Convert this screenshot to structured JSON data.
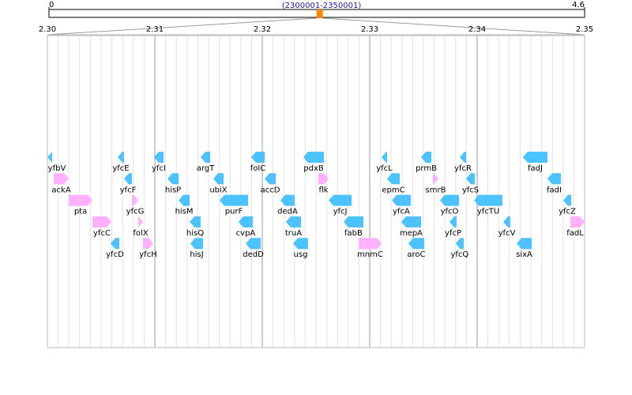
{
  "chart_data": {
    "type": "genome-map",
    "overview": {
      "xlim": [
        0,
        4.6
      ],
      "xticks": [
        0,
        4.6
      ],
      "label": "(2300001-2350001)",
      "region": [
        2.3,
        2.35
      ],
      "color": "#ff8800"
    },
    "xlim": [
      2.3,
      2.35
    ],
    "xticks": [
      {
        "value": 2.3,
        "label": "2.30"
      },
      2.31,
      2.32,
      2.33,
      2.34,
      2.35
    ],
    "minor_step": 0.001,
    "grid": true,
    "tracks": [
      [
        {
          "name": "yfbV",
          "start": 2.3,
          "end": 2.30044,
          "strand": "-",
          "color": "#4cc3ff"
        },
        {
          "name": "yfcE",
          "start": 2.30654,
          "end": 2.30713,
          "strand": "-",
          "color": "#4cc3ff"
        },
        {
          "name": "yfcI",
          "start": 2.30993,
          "end": 2.31081,
          "strand": "-",
          "color": "#4cc3ff"
        },
        {
          "name": "argT",
          "start": 2.31426,
          "end": 2.31515,
          "strand": "-",
          "color": "#4cc3ff"
        },
        {
          "name": "folC",
          "start": 2.31897,
          "end": 2.32022,
          "strand": "-",
          "color": "#4cc3ff"
        },
        {
          "name": "pdxB",
          "start": 2.32382,
          "end": 2.32574,
          "strand": "-",
          "color": "#4cc3ff"
        },
        {
          "name": "yfcL",
          "start": 2.3311,
          "end": 2.33162,
          "strand": "-",
          "color": "#4cc3ff"
        },
        {
          "name": "prmB",
          "start": 2.33478,
          "end": 2.33574,
          "strand": "-",
          "color": "#4cc3ff"
        },
        {
          "name": "yfcR",
          "start": 2.33838,
          "end": 2.33897,
          "strand": "-",
          "color": "#4cc3ff"
        },
        {
          "name": "fadJ",
          "start": 2.34426,
          "end": 2.34654,
          "strand": "-",
          "color": "#4cc3ff"
        }
      ],
      [
        {
          "name": "ackA",
          "start": 2.30059,
          "end": 2.30199,
          "strand": "+",
          "color": "#ffb0ff"
        },
        {
          "name": "yfcF",
          "start": 2.30713,
          "end": 2.30787,
          "strand": "-",
          "color": "#4cc3ff"
        },
        {
          "name": "hisP",
          "start": 2.31118,
          "end": 2.31221,
          "strand": "-",
          "color": "#4cc3ff"
        },
        {
          "name": "ubiX",
          "start": 2.31544,
          "end": 2.3164,
          "strand": "-",
          "color": "#4cc3ff"
        },
        {
          "name": "accD",
          "start": 2.32022,
          "end": 2.32125,
          "strand": "-",
          "color": "#4cc3ff"
        },
        {
          "name": "flk",
          "start": 2.32522,
          "end": 2.32618,
          "strand": "+",
          "color": "#ffb0ff"
        },
        {
          "name": "epmC",
          "start": 2.33162,
          "end": 2.33279,
          "strand": "-",
          "color": "#4cc3ff"
        },
        {
          "name": "smrB",
          "start": 2.33588,
          "end": 2.3364,
          "strand": "+",
          "color": "#ffb0ff"
        },
        {
          "name": "yfcS",
          "start": 2.33897,
          "end": 2.33978,
          "strand": "-",
          "color": "#4cc3ff"
        },
        {
          "name": "fadI",
          "start": 2.34654,
          "end": 2.34779,
          "strand": "-",
          "color": "#4cc3ff"
        }
      ],
      [
        {
          "name": "pta",
          "start": 2.30199,
          "end": 2.30419,
          "strand": "+",
          "color": "#ffb0ff"
        },
        {
          "name": "yfcG",
          "start": 2.30787,
          "end": 2.30846,
          "strand": "+",
          "color": "#ffb0ff"
        },
        {
          "name": "hisM",
          "start": 2.31221,
          "end": 2.31324,
          "strand": "-",
          "color": "#4cc3ff"
        },
        {
          "name": "purF",
          "start": 2.31603,
          "end": 2.31868,
          "strand": "-",
          "color": "#4cc3ff"
        },
        {
          "name": "dedA",
          "start": 2.32169,
          "end": 2.32301,
          "strand": "-",
          "color": "#4cc3ff"
        },
        {
          "name": "yfcJ",
          "start": 2.32618,
          "end": 2.32831,
          "strand": "-",
          "color": "#4cc3ff"
        },
        {
          "name": "yfcA",
          "start": 2.33206,
          "end": 2.33382,
          "strand": "-",
          "color": "#4cc3ff"
        },
        {
          "name": "yfcO",
          "start": 2.33654,
          "end": 2.33831,
          "strand": "-",
          "color": "#4cc3ff"
        },
        {
          "name": "yfcTU",
          "start": 2.33971,
          "end": 2.34235,
          "strand": "-",
          "color": "#4cc3ff"
        },
        {
          "name": "yfcZ",
          "start": 2.34801,
          "end": 2.34875,
          "strand": "-",
          "color": "#4cc3ff"
        }
      ],
      [
        {
          "name": "yfcC",
          "start": 2.30419,
          "end": 2.30596,
          "strand": "+",
          "color": "#ffb0ff"
        },
        {
          "name": "folX",
          "start": 2.30846,
          "end": 2.3089,
          "strand": "+",
          "color": "#ffb0ff"
        },
        {
          "name": "hisQ",
          "start": 2.31324,
          "end": 2.31426,
          "strand": "-",
          "color": "#4cc3ff"
        },
        {
          "name": "cvpA",
          "start": 2.31779,
          "end": 2.31912,
          "strand": "-",
          "color": "#4cc3ff"
        },
        {
          "name": "truA",
          "start": 2.3222,
          "end": 2.3236,
          "strand": "-",
          "color": "#4cc3ff"
        },
        {
          "name": "fabB",
          "start": 2.32757,
          "end": 2.32941,
          "strand": "-",
          "color": "#4cc3ff"
        },
        {
          "name": "mepA",
          "start": 2.33294,
          "end": 2.33478,
          "strand": "-",
          "color": "#4cc3ff"
        },
        {
          "name": "yfcP",
          "start": 2.33743,
          "end": 2.33809,
          "strand": "-",
          "color": "#4cc3ff"
        },
        {
          "name": "yfcV",
          "start": 2.34243,
          "end": 2.34309,
          "strand": "-",
          "color": "#4cc3ff"
        },
        {
          "name": "fadL",
          "start": 2.34868,
          "end": 2.35,
          "strand": "+",
          "color": "#ffb0ff"
        }
      ],
      [
        {
          "name": "yfcD",
          "start": 2.30588,
          "end": 2.30669,
          "strand": "-",
          "color": "#4cc3ff"
        },
        {
          "name": "yfcH",
          "start": 2.3089,
          "end": 2.30985,
          "strand": "+",
          "color": "#ffb0ff"
        },
        {
          "name": "hisJ",
          "start": 2.31331,
          "end": 2.31449,
          "strand": "-",
          "color": "#4cc3ff"
        },
        {
          "name": "dedD",
          "start": 2.31846,
          "end": 2.31985,
          "strand": "-",
          "color": "#4cc3ff"
        },
        {
          "name": "usg",
          "start": 2.32287,
          "end": 2.32426,
          "strand": "-",
          "color": "#4cc3ff"
        },
        {
          "name": "mnmC",
          "start": 2.32897,
          "end": 2.3311,
          "strand": "+",
          "color": "#ffb0ff"
        },
        {
          "name": "aroC",
          "start": 2.3336,
          "end": 2.33507,
          "strand": "-",
          "color": "#4cc3ff"
        },
        {
          "name": "yfcQ",
          "start": 2.338,
          "end": 2.33875,
          "strand": "-",
          "color": "#4cc3ff"
        },
        {
          "name": "sixA",
          "start": 2.34368,
          "end": 2.34507,
          "strand": "-",
          "color": "#4cc3ff"
        }
      ]
    ]
  }
}
